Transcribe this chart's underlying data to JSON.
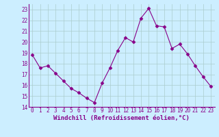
{
  "x": [
    0,
    1,
    2,
    3,
    4,
    5,
    6,
    7,
    8,
    9,
    10,
    11,
    12,
    13,
    14,
    15,
    16,
    17,
    18,
    19,
    20,
    21,
    22,
    23
  ],
  "y": [
    18.8,
    17.6,
    17.8,
    17.1,
    16.4,
    15.7,
    15.3,
    14.8,
    14.4,
    16.2,
    17.6,
    19.2,
    20.4,
    20.0,
    22.2,
    23.1,
    21.5,
    21.4,
    19.4,
    19.8,
    18.9,
    17.8,
    16.8,
    15.9
  ],
  "line_color": "#880088",
  "marker": "D",
  "marker_size": 2.5,
  "bg_color": "#cceeff",
  "grid_color": "#aacccc",
  "xlabel": "Windchill (Refroidissement éolien,°C)",
  "xlim": [
    -0.5,
    23.5
  ],
  "ylim": [
    14,
    23.5
  ],
  "yticks": [
    14,
    15,
    16,
    17,
    18,
    19,
    20,
    21,
    22,
    23
  ],
  "xticks": [
    0,
    1,
    2,
    3,
    4,
    5,
    6,
    7,
    8,
    9,
    10,
    11,
    12,
    13,
    14,
    15,
    16,
    17,
    18,
    19,
    20,
    21,
    22,
    23
  ],
  "tick_fontsize": 5.5,
  "label_fontsize": 6.5
}
